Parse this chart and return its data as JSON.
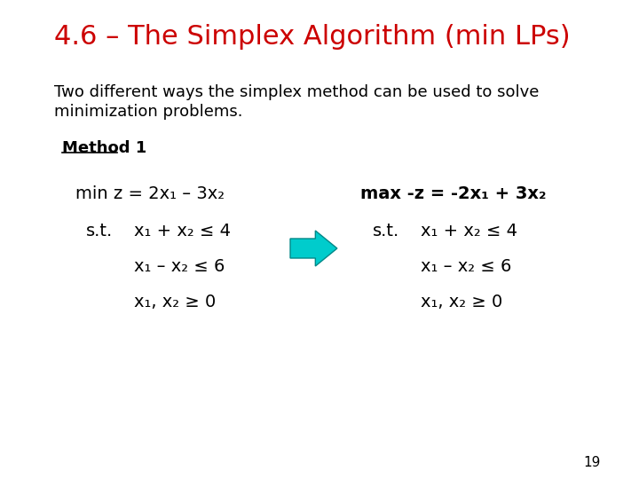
{
  "title": "4.6 – The Simplex Algorithm (min LPs)",
  "title_color": "#cc0000",
  "bg_color": "#ffffff",
  "body_line1": "Two different ways the simplex method can be used to solve",
  "body_line2": "minimization problems.",
  "method_label": "Method 1",
  "page_number": "19",
  "left_line1": "min z = 2x₁ – 3x₂",
  "left_st": "s.t.",
  "left_eq1": "x₁ + x₂ ≤ 4",
  "left_eq2": "x₁ – x₂ ≤ 6",
  "left_eq3": "x₁, x₂ ≥ 0",
  "right_line1": "max -z = -2x₁ + 3x₂",
  "right_st": "s.t.",
  "right_eq1": "x₁ + x₂ ≤ 4",
  "right_eq2": "x₁ – x₂ ≤ 6",
  "right_eq3": "x₁, x₂ ≥ 0",
  "arrow_color": "#00cccc",
  "arrow_edge_color": "#008888",
  "font_size_title": 22,
  "font_size_body": 13,
  "font_size_method": 13,
  "font_size_eq": 14,
  "font_size_page": 11
}
